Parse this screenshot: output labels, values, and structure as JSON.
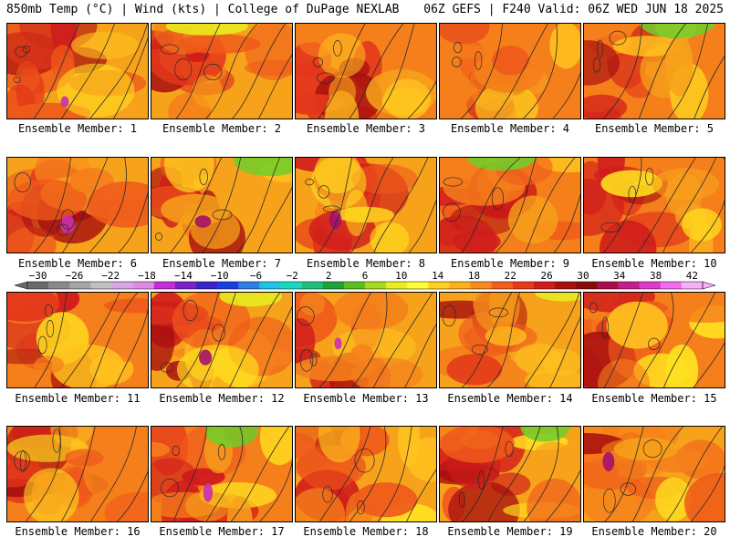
{
  "header": {
    "left": "850mb Temp (°C) | Wind (kts) | College of DuPage NEXLAB",
    "right": "06Z GEFS | F240 Valid: 06Z WED JUN 18 2025"
  },
  "panels": [
    {
      "label": "Ensemble Member: 1"
    },
    {
      "label": "Ensemble Member: 2"
    },
    {
      "label": "Ensemble Member: 3"
    },
    {
      "label": "Ensemble Member: 4"
    },
    {
      "label": "Ensemble Member: 5"
    },
    {
      "label": "Ensemble Member: 6"
    },
    {
      "label": "Ensemble Member: 7"
    },
    {
      "label": "Ensemble Member: 8"
    },
    {
      "label": "Ensemble Member: 9"
    },
    {
      "label": "Ensemble Member: 10"
    },
    {
      "label": "Ensemble Member: 11"
    },
    {
      "label": "Ensemble Member: 12"
    },
    {
      "label": "Ensemble Member: 13"
    },
    {
      "label": "Ensemble Member: 14"
    },
    {
      "label": "Ensemble Member: 15"
    },
    {
      "label": "Ensemble Member: 16"
    },
    {
      "label": "Ensemble Member: 17"
    },
    {
      "label": "Ensemble Member: 18"
    },
    {
      "label": "Ensemble Member: 19"
    },
    {
      "label": "Ensemble Member: 20"
    }
  ],
  "colorbar": {
    "labels": [
      "−30",
      "−26",
      "−22",
      "−18",
      "−14",
      "−10",
      "−6",
      "−2",
      "2",
      "6",
      "10",
      "14",
      "18",
      "22",
      "26",
      "30",
      "34",
      "38",
      "42"
    ],
    "colors": [
      "#6b6b6b",
      "#8a8a8a",
      "#a6a6a6",
      "#c0c0c0",
      "#d6a6e6",
      "#e08ae6",
      "#c22fd9",
      "#7b22c9",
      "#3b22c9",
      "#1c3ee0",
      "#2c7fe6",
      "#1fc4e0",
      "#18d9c0",
      "#1fbf7a",
      "#1fa23a",
      "#5bbf1f",
      "#a6d91f",
      "#e6f01f",
      "#ffff33",
      "#ffd21f",
      "#ffb01f",
      "#f78a1b",
      "#f0601b",
      "#e63a1b",
      "#d21b1b",
      "#a80f0f",
      "#8a0a0a",
      "#a80f4a",
      "#c21f8a",
      "#e03ac8",
      "#f06ef0",
      "#f7b0f7"
    ]
  }
}
